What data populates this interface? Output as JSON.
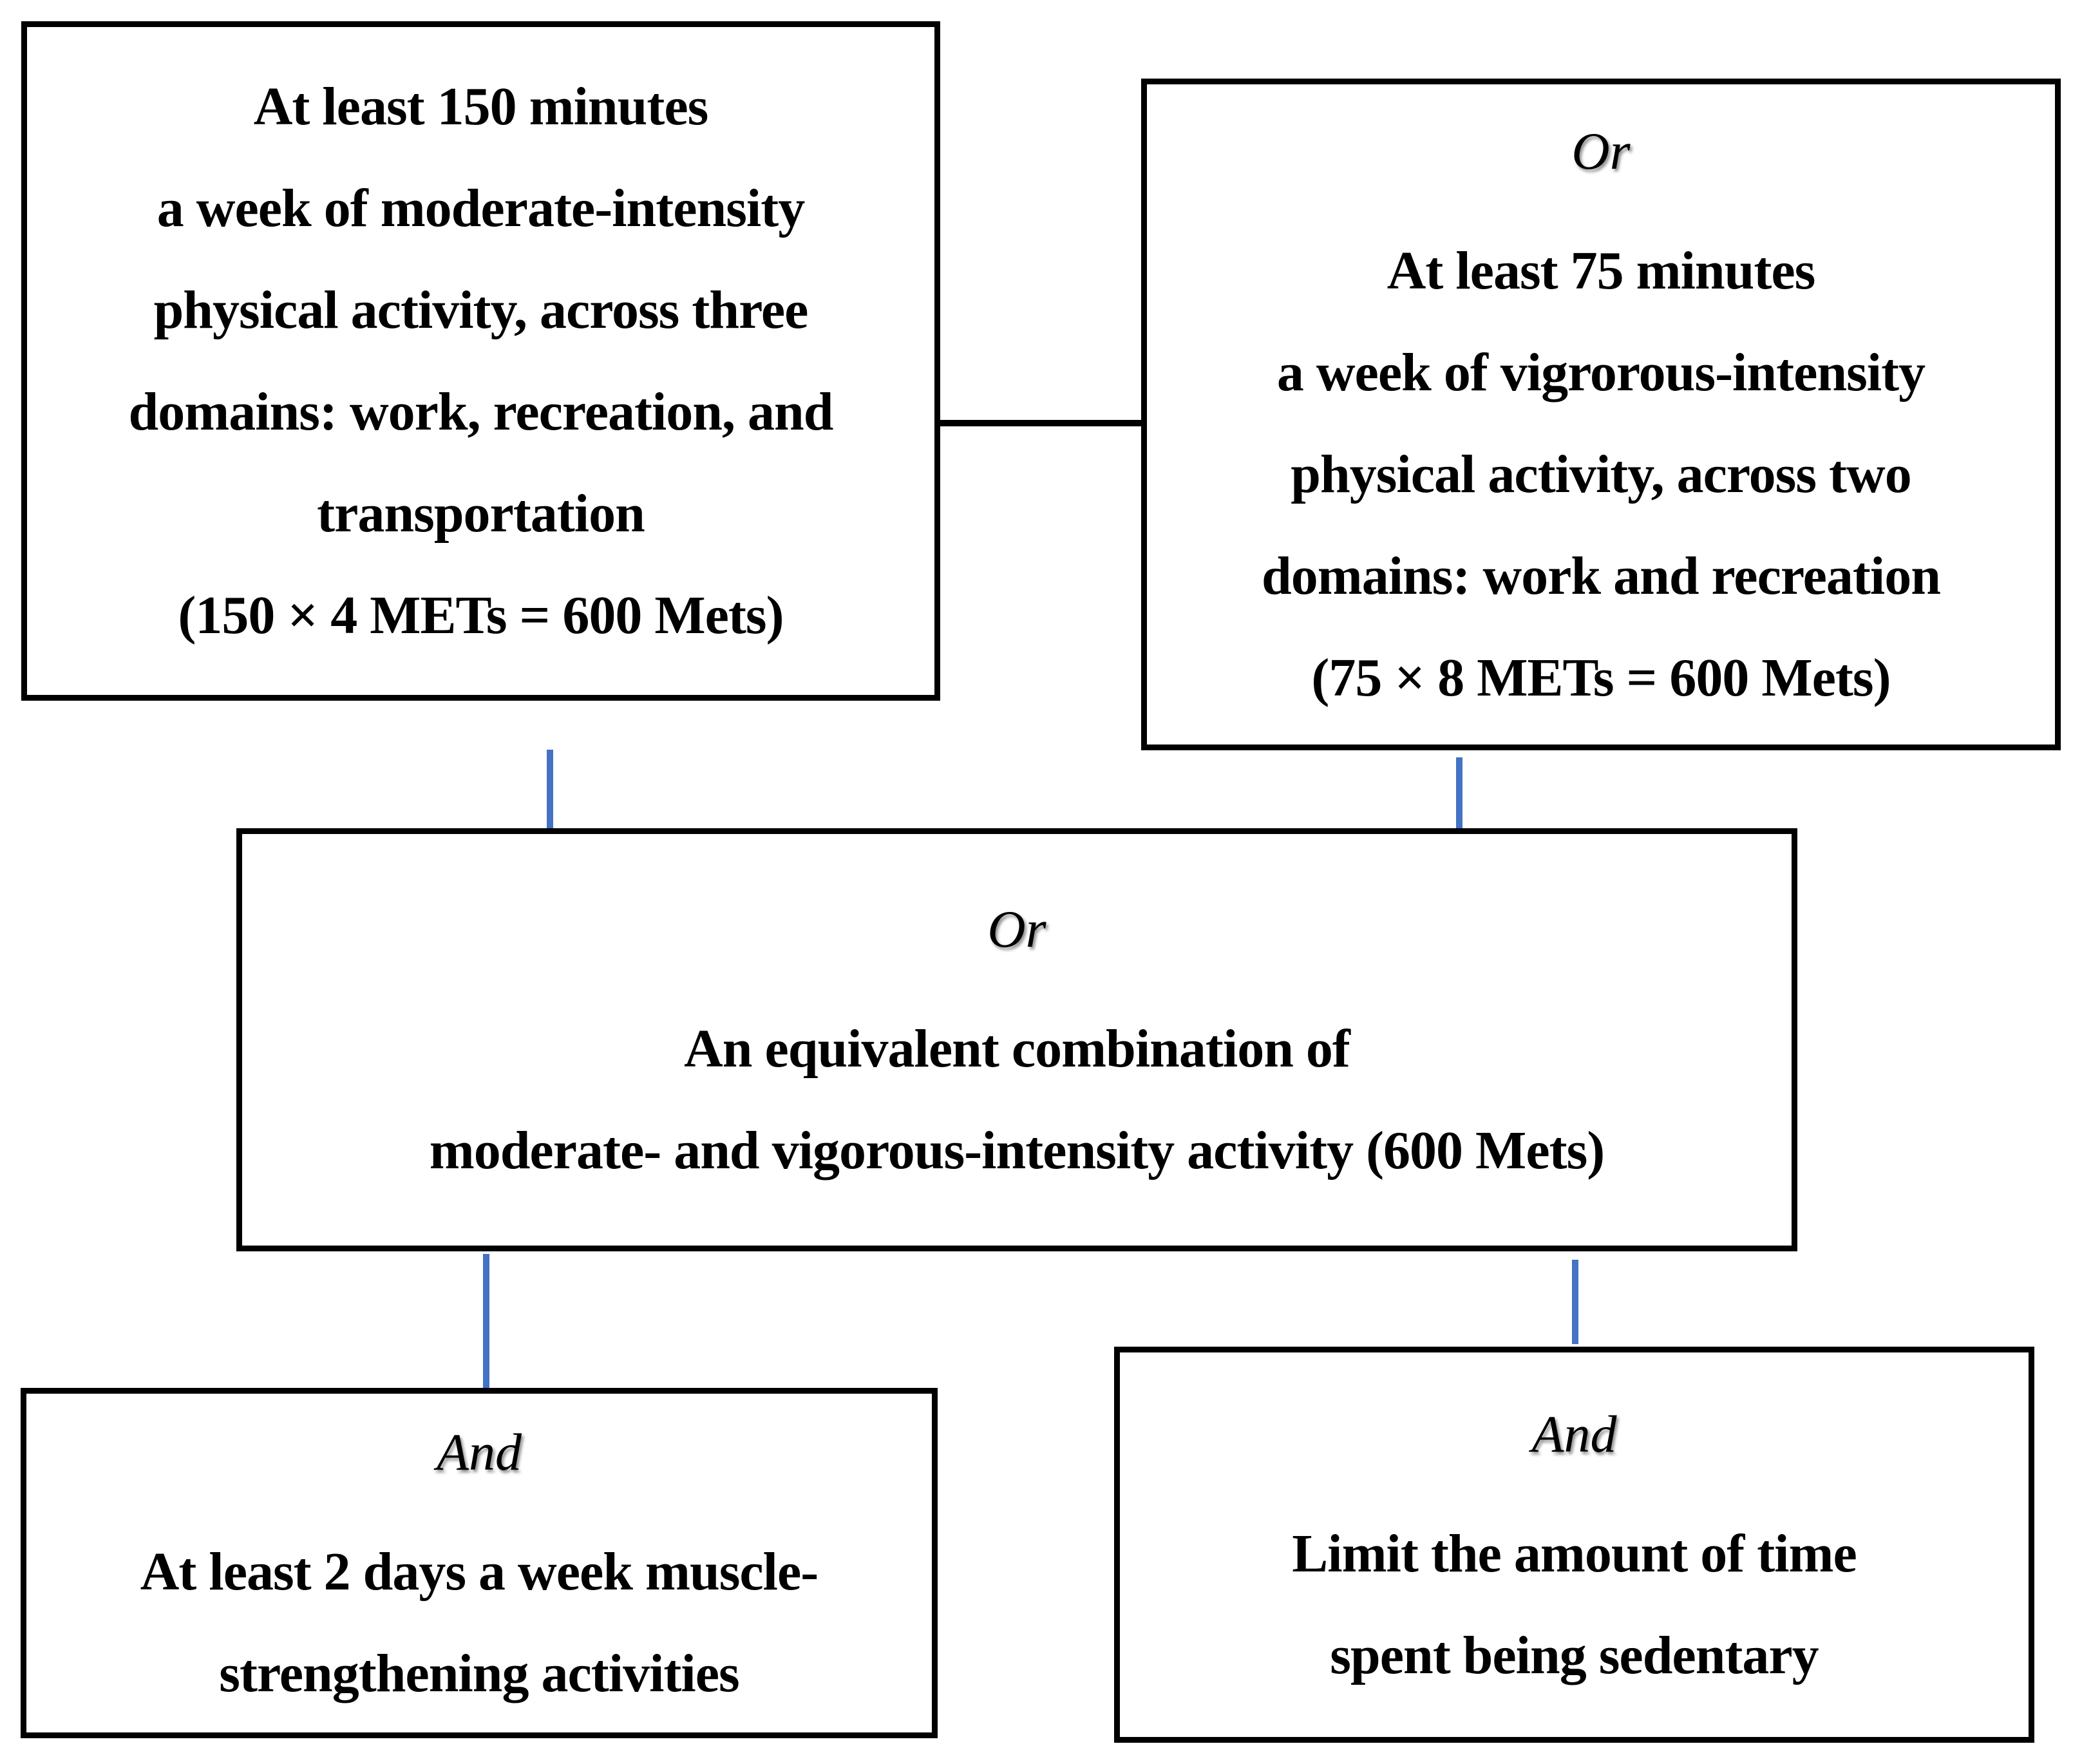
{
  "figure": {
    "background_color": "#ffffff",
    "box_border_color": "#000000",
    "connector_color": "#4472C4",
    "text_color": "#000000"
  },
  "boxes": [
    {
      "name": "moderate-activity",
      "tag": "",
      "lines": [
        "At least 150 minutes",
        "a week of moderate-intensity",
        "physical activity, across three",
        "domains: work, recreation, and",
        "transportation",
        "(150 × 4 METs = 600 Mets)"
      ]
    },
    {
      "name": "vigorous-activity",
      "tag": "Or",
      "lines": [
        "At least 75 minutes",
        "a week of vigrorous-intensity",
        "physical activity, across two",
        "domains: work and recreation",
        "(75 × 8 METs = 600 Mets)"
      ]
    },
    {
      "name": "equivalent-combination",
      "tag": "Or",
      "lines": [
        "An equivalent combination of",
        "moderate- and vigorous-intensity activity (600 Mets)"
      ]
    },
    {
      "name": "muscle-strengthening",
      "tag": "And",
      "lines": [
        "At least 2 days a week muscle-",
        "strengthening activities"
      ]
    },
    {
      "name": "limit-sedentary",
      "tag": "And",
      "lines": [
        "Limit the amount of time",
        "spent being sedentary"
      ]
    }
  ]
}
